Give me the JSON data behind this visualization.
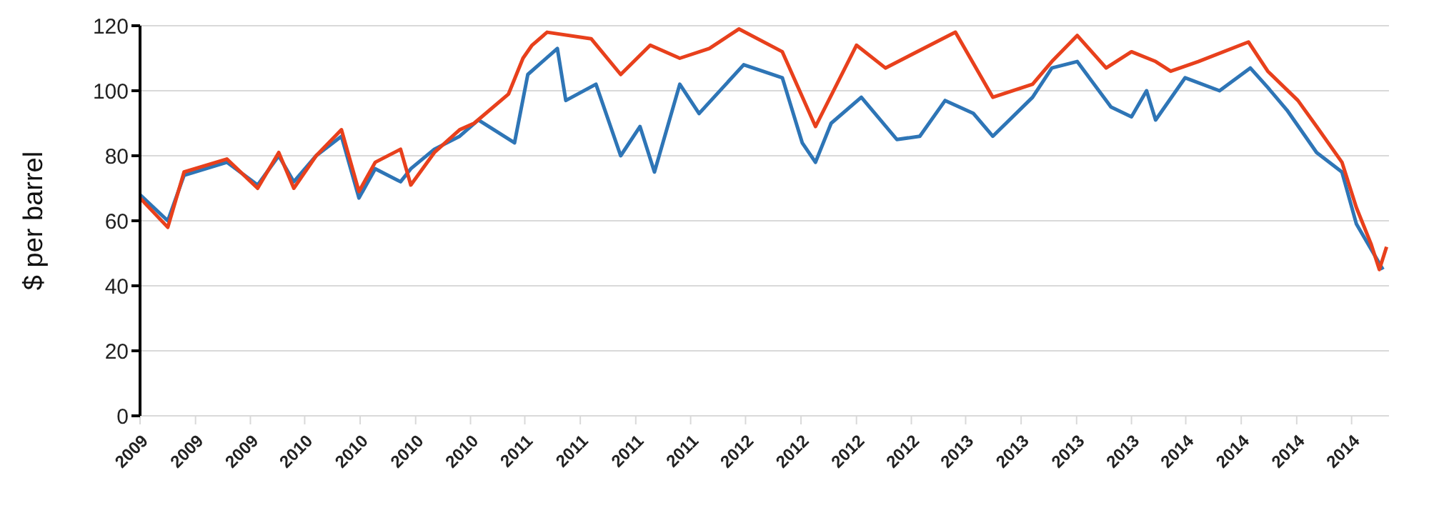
{
  "chart_data": {
    "type": "line",
    "ylabel": "$ per barrel",
    "xlim": [
      "2009-06-01",
      "2015-02-01"
    ],
    "ylim": [
      0,
      120
    ],
    "yticks": [
      0,
      20,
      40,
      60,
      80,
      100,
      120
    ],
    "xticks": [
      {
        "value": "2009-06-01",
        "label": "2009"
      },
      {
        "value": "2009-09-01",
        "label": "2009"
      },
      {
        "value": "2009-12-01",
        "label": "2009"
      },
      {
        "value": "2010-03-01",
        "label": "2010"
      },
      {
        "value": "2010-06-01",
        "label": "2010"
      },
      {
        "value": "2010-09-01",
        "label": "2010"
      },
      {
        "value": "2010-12-01",
        "label": "2010"
      },
      {
        "value": "2011-03-01",
        "label": "2011"
      },
      {
        "value": "2011-06-01",
        "label": "2011"
      },
      {
        "value": "2011-09-01",
        "label": "2011"
      },
      {
        "value": "2011-12-01",
        "label": "2011"
      },
      {
        "value": "2012-03-01",
        "label": "2012"
      },
      {
        "value": "2012-06-01",
        "label": "2012"
      },
      {
        "value": "2012-09-01",
        "label": "2012"
      },
      {
        "value": "2012-12-01",
        "label": "2012"
      },
      {
        "value": "2013-03-01",
        "label": "2013"
      },
      {
        "value": "2013-06-01",
        "label": "2013"
      },
      {
        "value": "2013-09-01",
        "label": "2013"
      },
      {
        "value": "2013-12-01",
        "label": "2013"
      },
      {
        "value": "2014-03-01",
        "label": "2014"
      },
      {
        "value": "2014-06-01",
        "label": "2014"
      },
      {
        "value": "2014-09-01",
        "label": "2014"
      },
      {
        "value": "2014-12-01",
        "label": "2014"
      }
    ],
    "grid": "y",
    "marker": "none",
    "line_style": "solid",
    "series": [
      {
        "color": "#2e75b6",
        "x": [
          "2009-06-01",
          "2009-07-17",
          "2009-08-13",
          "2009-10-23",
          "2009-12-13",
          "2010-01-17",
          "2010-02-11",
          "2010-03-20",
          "2010-05-01",
          "2010-05-30",
          "2010-06-26",
          "2010-08-07",
          "2010-08-24",
          "2010-10-02",
          "2010-11-13",
          "2010-12-14",
          "2011-02-12",
          "2011-03-06",
          "2011-04-24",
          "2011-05-08",
          "2011-06-27",
          "2011-08-07",
          "2011-09-08",
          "2011-10-02",
          "2011-11-13",
          "2011-12-15",
          "2012-02-27",
          "2012-05-01",
          "2012-06-03",
          "2012-06-25",
          "2012-07-21",
          "2012-09-09",
          "2012-11-07",
          "2012-12-15",
          "2013-01-26",
          "2013-03-14",
          "2013-04-15",
          "2013-06-20",
          "2013-07-22",
          "2013-09-02",
          "2013-10-28",
          "2013-12-01",
          "2013-12-26",
          "2014-01-10",
          "2014-02-28",
          "2014-04-26",
          "2014-06-16",
          "2014-07-15",
          "2014-08-16",
          "2014-10-04",
          "2014-11-15",
          "2014-12-09",
          "2015-01-22"
        ],
        "values": [
          68,
          60,
          74,
          78,
          71,
          80,
          72,
          80,
          86,
          67,
          76,
          72,
          76,
          82,
          86,
          91,
          84,
          105,
          113,
          97,
          102,
          80,
          89,
          75,
          102,
          93,
          108,
          104,
          84,
          78,
          90,
          98,
          85,
          86,
          97,
          93,
          86,
          98,
          107,
          109,
          95,
          92,
          100,
          91,
          104,
          100,
          107,
          101,
          94,
          81,
          75,
          59,
          45
        ]
      },
      {
        "color": "#e8401c",
        "x": [
          "2009-06-01",
          "2009-07-17",
          "2009-08-13",
          "2009-10-23",
          "2009-12-13",
          "2010-01-17",
          "2010-02-11",
          "2010-03-20",
          "2010-05-01",
          "2010-05-30",
          "2010-06-26",
          "2010-08-07",
          "2010-08-24",
          "2010-10-02",
          "2010-11-13",
          "2010-12-07",
          "2011-02-02",
          "2011-02-26",
          "2011-03-13",
          "2011-04-07",
          "2011-06-19",
          "2011-08-07",
          "2011-09-25",
          "2011-11-13",
          "2012-01-01",
          "2012-02-19",
          "2012-05-01",
          "2012-06-25",
          "2012-09-01",
          "2012-10-19",
          "2013-02-12",
          "2013-04-15",
          "2013-06-20",
          "2013-07-22",
          "2013-09-02",
          "2013-10-20",
          "2013-12-01",
          "2014-01-10",
          "2014-02-04",
          "2014-03-22",
          "2014-06-13",
          "2014-07-15",
          "2014-09-03",
          "2014-10-04",
          "2014-11-15",
          "2014-12-09",
          "2015-01-02",
          "2015-01-16",
          "2015-01-28"
        ],
        "values": [
          67,
          58,
          75,
          79,
          70,
          81,
          70,
          80,
          88,
          69,
          78,
          82,
          71,
          81,
          88,
          90,
          99,
          110,
          114,
          118,
          116,
          105,
          114,
          110,
          113,
          119,
          112,
          89,
          114,
          107,
          118,
          98,
          102,
          109,
          117,
          107,
          112,
          109,
          106,
          109,
          115,
          106,
          97,
          89,
          78,
          64,
          53,
          45,
          52
        ]
      }
    ]
  }
}
